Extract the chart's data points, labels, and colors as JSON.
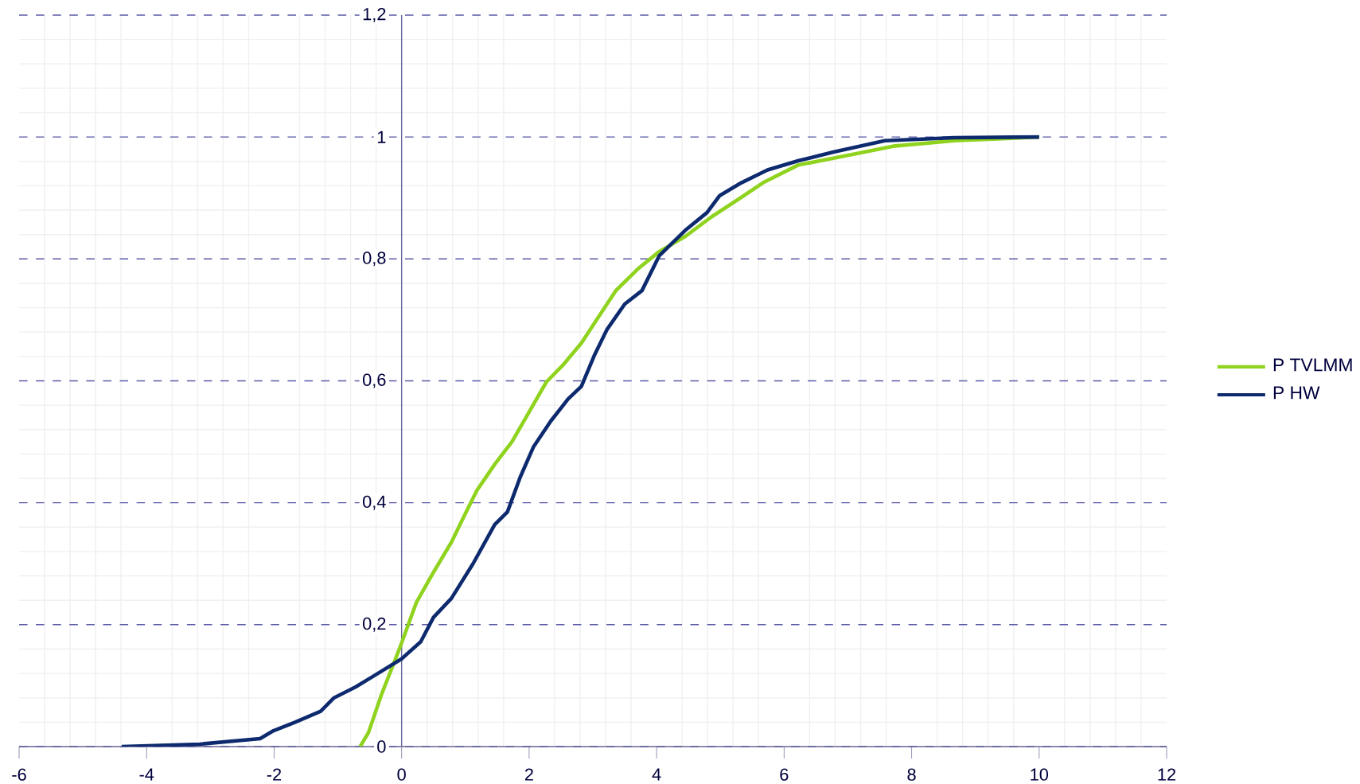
{
  "chart_data": {
    "type": "line",
    "xlim": [
      -6,
      12
    ],
    "ylim": [
      0,
      1.2
    ],
    "xticks": [
      -6,
      -4,
      -2,
      0,
      2,
      4,
      6,
      8,
      10,
      12
    ],
    "yticks": [
      0,
      {
        "value": 0.2,
        "label": "0,2"
      },
      {
        "value": 0.4,
        "label": "0,4"
      },
      {
        "value": 0.6,
        "label": "0,6"
      },
      {
        "value": 0.8,
        "label": "0,8"
      },
      1,
      {
        "value": 1.2,
        "label": "1,2"
      }
    ],
    "grid": true,
    "legend": "right",
    "marker": "none",
    "line_style": "solid",
    "series": [
      {
        "name": "P TVLMM",
        "color": "#8fd31e",
        "x": [
          -0.65,
          -0.52,
          -0.31,
          -0.11,
          0,
          0.23,
          0.5,
          0.78,
          0.98,
          1.18,
          1.46,
          1.73,
          2.0,
          2.27,
          2.54,
          2.82,
          3.09,
          3.36,
          3.7,
          4.04,
          4.45,
          4.86,
          5.27,
          5.67,
          6.22,
          6.9,
          7.71,
          8.67,
          10
        ],
        "values": [
          0,
          0.023,
          0.087,
          0.14,
          0.17,
          0.236,
          0.286,
          0.335,
          0.378,
          0.42,
          0.463,
          0.5,
          0.549,
          0.598,
          0.627,
          0.662,
          0.705,
          0.748,
          0.783,
          0.812,
          0.837,
          0.869,
          0.897,
          0.925,
          0.954,
          0.968,
          0.985,
          0.994,
          1.0
        ]
      },
      {
        "name": "P HW",
        "color": "#0e2a6e",
        "x": [
          -4.39,
          -3.17,
          -2.22,
          -2.01,
          -1.67,
          -1.27,
          -1.06,
          -0.72,
          -0.45,
          0,
          0.3,
          0.5,
          0.78,
          1.12,
          1.46,
          1.66,
          1.86,
          2.07,
          2.34,
          2.61,
          2.82,
          3.02,
          3.22,
          3.5,
          3.77,
          4.04,
          4.45,
          4.79,
          4.99,
          5.33,
          5.74,
          6.22,
          6.76,
          7.58,
          8.67,
          10
        ],
        "values": [
          0,
          0.004,
          0.013,
          0.026,
          0.04,
          0.058,
          0.08,
          0.098,
          0.115,
          0.144,
          0.172,
          0.212,
          0.243,
          0.3,
          0.364,
          0.385,
          0.442,
          0.492,
          0.534,
          0.57,
          0.591,
          0.641,
          0.684,
          0.726,
          0.748,
          0.805,
          0.847,
          0.876,
          0.904,
          0.925,
          0.946,
          0.961,
          0.975,
          0.994,
          0.999,
          1.0
        ]
      }
    ]
  }
}
